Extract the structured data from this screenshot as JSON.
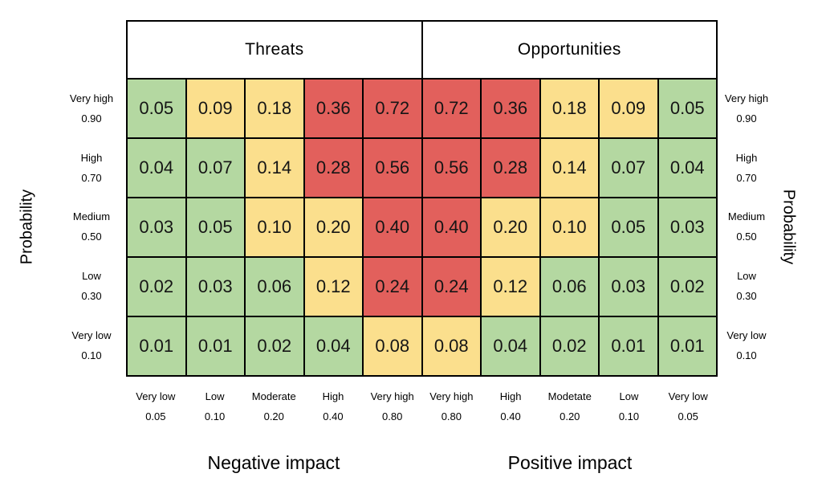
{
  "chart_data": {
    "type": "heatmap",
    "sections": [
      "Threats",
      "Opportunities"
    ],
    "ylabel_left": "Probability",
    "ylabel_right": "Probability",
    "xlabel_left": "Negative impact",
    "xlabel_right": "Positive impact",
    "probability_levels": [
      {
        "label": "Very high",
        "value": "0.90"
      },
      {
        "label": "High",
        "value": "0.70"
      },
      {
        "label": "Medium",
        "value": "0.50"
      },
      {
        "label": "Low",
        "value": "0.30"
      },
      {
        "label": "Very low",
        "value": "0.10"
      }
    ],
    "impact_levels": [
      {
        "label": "Very low",
        "value": "0.05"
      },
      {
        "label": "Low",
        "value": "0.10"
      },
      {
        "label": "Moderate",
        "value": "0.20"
      },
      {
        "label": "High",
        "value": "0.40"
      },
      {
        "label": "Very high",
        "value": "0.80"
      },
      {
        "label": "Very high",
        "value": "0.80"
      },
      {
        "label": "High",
        "value": "0.40"
      },
      {
        "label": "Modetate",
        "value": "0.20"
      },
      {
        "label": "Low",
        "value": "0.10"
      },
      {
        "label": "Very low",
        "value": "0.05"
      }
    ],
    "values": [
      [
        "0.05",
        "0.09",
        "0.18",
        "0.36",
        "0.72",
        "0.72",
        "0.36",
        "0.18",
        "0.09",
        "0.05"
      ],
      [
        "0.04",
        "0.07",
        "0.14",
        "0.28",
        "0.56",
        "0.56",
        "0.28",
        "0.14",
        "0.07",
        "0.04"
      ],
      [
        "0.03",
        "0.05",
        "0.10",
        "0.20",
        "0.40",
        "0.40",
        "0.20",
        "0.10",
        "0.05",
        "0.03"
      ],
      [
        "0.02",
        "0.03",
        "0.06",
        "0.12",
        "0.24",
        "0.24",
        "0.12",
        "0.06",
        "0.03",
        "0.02"
      ],
      [
        "0.01",
        "0.01",
        "0.02",
        "0.04",
        "0.08",
        "0.08",
        "0.04",
        "0.02",
        "0.01",
        "0.01"
      ]
    ],
    "color_rules": {
      "green_max": 0.07,
      "yellow_max": 0.2
    },
    "colors": {
      "green": "#b4d8a1",
      "yellow": "#fbdf8d",
      "red": "#e2605c",
      "grid_line": "#000000",
      "background": "#ffffff"
    }
  }
}
